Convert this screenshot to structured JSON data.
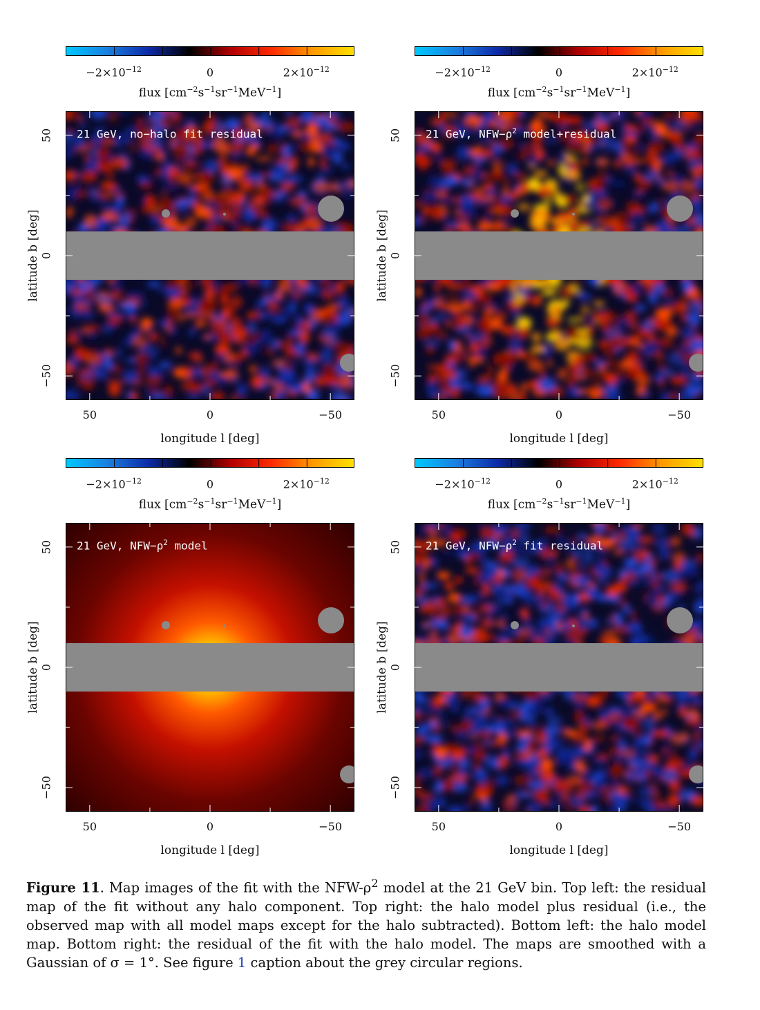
{
  "colorbar": {
    "ticks": [
      {
        "label": "−2×10",
        "exp": "−12",
        "value": -2e-12
      },
      {
        "label": "0",
        "exp": "",
        "value": 0
      },
      {
        "label": "2×10",
        "exp": "−12",
        "value": 2e-12
      }
    ],
    "range": [
      -3e-12,
      3e-12
    ],
    "colors": [
      "#00c8ff",
      "#1a7fe0",
      "#0d2aa8",
      "#000000",
      "#b00000",
      "#ff2a00",
      "#ff9a00",
      "#ffe000"
    ],
    "label_prefix": "flux [cm",
    "label_e1": "−2",
    "label_s": "s",
    "label_e2": "−1",
    "label_sr": "sr",
    "label_e3": "−1",
    "label_mev": "MeV",
    "label_e4": "−1",
    "label_suffix": "]"
  },
  "axes": {
    "xlabel": "longitude l [deg]",
    "ylabel": "latitude b [deg]",
    "xticks": [
      "50",
      "0",
      "−50"
    ],
    "yticks": [
      "50",
      "0",
      "−50"
    ],
    "xlim": [
      60,
      -60
    ],
    "ylim": [
      -60,
      60
    ]
  },
  "panels": [
    {
      "title_a": "21 GeV, no−halo fit residual",
      "title_sup": "",
      "title_b": ""
    },
    {
      "title_a": "21 GeV, NFW−ρ",
      "title_sup": "2",
      "title_b": " model+residual"
    },
    {
      "title_a": "21 GeV, NFW−ρ",
      "title_sup": "2",
      "title_b": " model"
    },
    {
      "title_a": "21 GeV, NFW−ρ",
      "title_sup": "2",
      "title_b": " fit residual"
    }
  ],
  "mask_color": "#8a8a8a",
  "caption": {
    "label": "Figure 11",
    "p1": ".   Map images of the fit with the NFW-ρ",
    "sup": "2",
    "p2": " model at the 21 GeV bin. Top left: the residual map of the fit without any halo component. Top right: the halo model plus residual (i.e., the observed map with all model maps except for the halo subtracted). Bottom left: the halo model map. Bottom right: the residual of the fit with the halo model. The maps are smoothed with a Gaussian of σ = 1°. See figure ",
    "ref": "1",
    "p3": " caption about the grey circular regions."
  }
}
